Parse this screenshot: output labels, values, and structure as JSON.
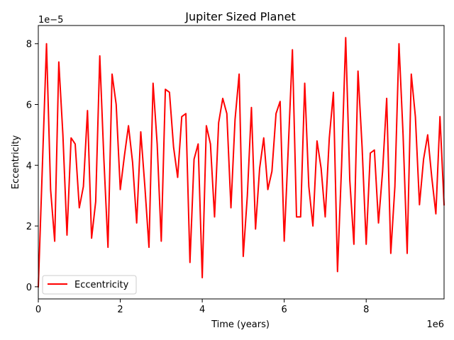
{
  "chart_data": {
    "type": "line",
    "title": "Jupiter Sized Planet",
    "xlabel": "Time (years)",
    "ylabel": "Eccentricity",
    "x_offset_label": "1e6",
    "y_offset_label": "1e−5",
    "xlim": [
      0,
      9.9
    ],
    "ylim": [
      -0.4,
      8.6
    ],
    "x_ticks": [
      0,
      2,
      4,
      6,
      8
    ],
    "x_tick_labels": [
      "0",
      "2",
      "4",
      "6",
      "8"
    ],
    "y_ticks": [
      0,
      2,
      4,
      6,
      8
    ],
    "y_tick_labels": [
      "0",
      "2",
      "4",
      "6",
      "8"
    ],
    "grid": false,
    "legend_position": "lower-left",
    "series": [
      {
        "name": "Eccentricity",
        "color": "#ff0000",
        "x": [
          0,
          0.1,
          0.2,
          0.3,
          0.4,
          0.5,
          0.6,
          0.7,
          0.8,
          0.9,
          1.0,
          1.1,
          1.2,
          1.3,
          1.4,
          1.5,
          1.6,
          1.7,
          1.8,
          1.9,
          2.0,
          2.1,
          2.2,
          2.3,
          2.4,
          2.5,
          2.6,
          2.7,
          2.8,
          2.9,
          3.0,
          3.1,
          3.2,
          3.3,
          3.4,
          3.5,
          3.6,
          3.7,
          3.8,
          3.9,
          4.0,
          4.1,
          4.2,
          4.3,
          4.4,
          4.5,
          4.6,
          4.7,
          4.8,
          4.9,
          5.0,
          5.1,
          5.2,
          5.3,
          5.4,
          5.5,
          5.6,
          5.7,
          5.8,
          5.9,
          6.0,
          6.1,
          6.2,
          6.3,
          6.4,
          6.5,
          6.6,
          6.7,
          6.8,
          6.9,
          7.0,
          7.1,
          7.2,
          7.3,
          7.4,
          7.5,
          7.6,
          7.7,
          7.8,
          7.9,
          8.0,
          8.1,
          8.2,
          8.3,
          8.4,
          8.5,
          8.6,
          8.7,
          8.8,
          8.9,
          9.0,
          9.1,
          9.2,
          9.3,
          9.4,
          9.5,
          9.6,
          9.7,
          9.8,
          9.9
        ],
        "y": [
          0,
          4.0,
          8.0,
          3.2,
          1.5,
          7.4,
          5.0,
          1.7,
          4.9,
          4.7,
          2.6,
          3.3,
          5.8,
          1.6,
          2.8,
          7.6,
          4.2,
          1.3,
          7.0,
          6.0,
          3.2,
          4.3,
          5.3,
          4.1,
          2.1,
          5.1,
          3.3,
          1.3,
          6.7,
          4.7,
          1.5,
          6.5,
          6.4,
          4.6,
          3.6,
          5.6,
          5.7,
          0.8,
          4.2,
          4.7,
          0.3,
          5.3,
          4.7,
          2.3,
          5.4,
          6.2,
          5.7,
          2.6,
          5.5,
          7.0,
          1.0,
          3.0,
          5.9,
          1.9,
          3.9,
          4.9,
          3.2,
          3.8,
          5.7,
          6.1,
          1.5,
          4.6,
          7.8,
          2.3,
          2.3,
          6.7,
          3.3,
          2.0,
          4.8,
          3.9,
          2.3,
          4.9,
          6.4,
          0.5,
          4.0,
          8.2,
          3.5,
          1.4,
          7.1,
          4.6,
          1.4,
          4.4,
          4.5,
          2.1,
          3.8,
          6.2,
          1.1,
          3.3,
          8.0,
          5.0,
          1.1,
          7.0,
          5.6,
          2.7,
          4.2,
          5.0,
          3.6,
          2.4,
          5.6,
          2.7
        ]
      }
    ]
  }
}
